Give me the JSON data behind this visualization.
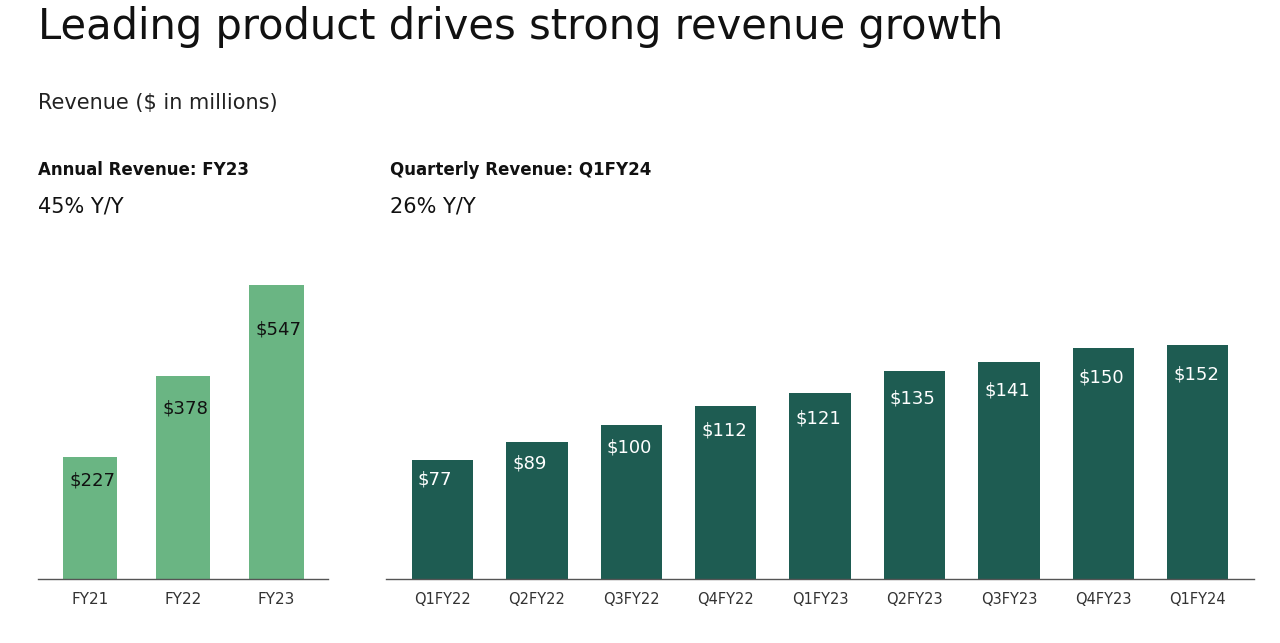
{
  "title": "Leading product drives strong revenue growth",
  "subtitle": "Revenue ($ in millions)",
  "annual_label_bold": "Annual Revenue: FY23",
  "annual_label_pct": "45% Y/Y",
  "quarterly_label_bold": "Quarterly Revenue: Q1FY24",
  "quarterly_label_pct": "26% Y/Y",
  "annual_categories": [
    "FY21",
    "FY22",
    "FY23"
  ],
  "annual_values": [
    227,
    378,
    547
  ],
  "annual_bar_color": "#6ab583",
  "quarterly_categories": [
    "Q1FY22",
    "Q2FY22",
    "Q3FY22",
    "Q4FY22",
    "Q1FY23",
    "Q2FY23",
    "Q3FY23",
    "Q4FY23",
    "Q1FY24"
  ],
  "quarterly_values": [
    77,
    89,
    100,
    112,
    121,
    135,
    141,
    150,
    152
  ],
  "quarterly_bar_color": "#1e5c52",
  "annual_val_color": "#111111",
  "quarterly_val_color": "#ffffff",
  "background_color": "#ffffff",
  "title_fontsize": 30,
  "subtitle_fontsize": 15,
  "annot_bold_fontsize": 12,
  "annot_pct_fontsize": 15,
  "bar_label_fontsize": 13,
  "tick_fontsize": 11
}
